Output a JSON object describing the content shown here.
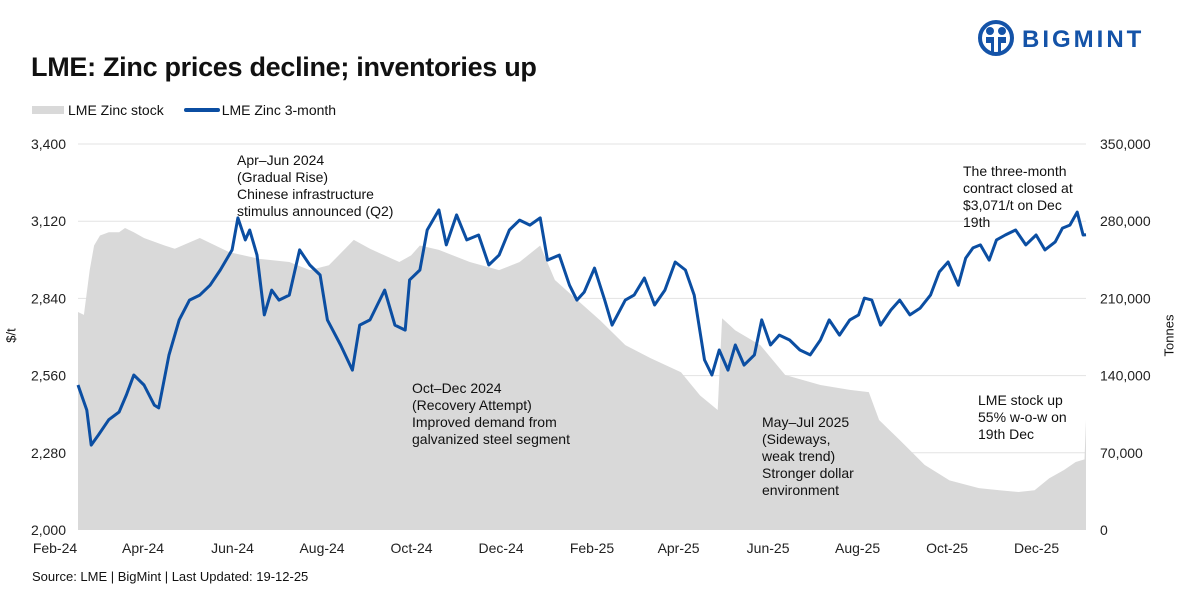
{
  "brand": {
    "name": "BIGMINT",
    "color": "#1453a8"
  },
  "title": "LME: Zinc prices decline; inventories up",
  "source": "Source: LME | BigMint | Last Updated: 19-12-25",
  "annotations": [
    {
      "lines": [
        "Apr–Jun 2024",
        "(Gradual Rise)",
        "Chinese infrastructure",
        "stimulus announced (Q2)"
      ]
    },
    {
      "lines": [
        "Oct–Dec 2024",
        "(Recovery Attempt)",
        "Improved demand from",
        "galvanized steel segment"
      ]
    },
    {
      "lines": [
        "May–Jul 2025",
        "(Sideways,",
        "weak trend)",
        "Stronger dollar",
        "environment"
      ]
    },
    {
      "lines": [
        "The three-month",
        "contract closed at",
        "$3,071/t on Dec",
        "19th"
      ]
    },
    {
      "lines": [
        "LME stock up",
        "55% w-o-w on",
        "19th Dec"
      ]
    }
  ],
  "chart_data": {
    "type": "line+area",
    "title": "LME: Zinc prices decline; inventories up",
    "ylabel": "$/t",
    "y2label": "Tonnes",
    "ylim": [
      2000,
      3400
    ],
    "y2lim": [
      0,
      350000
    ],
    "yticks": [
      "2,000",
      "2,280",
      "2,560",
      "2,840",
      "3,120",
      "3,400"
    ],
    "y2ticks": [
      "0",
      "70,000",
      "140,000",
      "210,000",
      "280,000",
      "350,000"
    ],
    "xticks": [
      {
        "label": "Feb-24",
        "date": "2024-02-01"
      },
      {
        "label": "Apr-24",
        "date": "2024-04-01"
      },
      {
        "label": "Jun-24",
        "date": "2024-06-01"
      },
      {
        "label": "Aug-24",
        "date": "2024-08-01"
      },
      {
        "label": "Oct-24",
        "date": "2024-10-01"
      },
      {
        "label": "Dec-24",
        "date": "2024-12-01"
      },
      {
        "label": "Feb-25",
        "date": "2025-02-01"
      },
      {
        "label": "Apr-25",
        "date": "2025-04-01"
      },
      {
        "label": "Jun-25",
        "date": "2025-06-01"
      },
      {
        "label": "Aug-25",
        "date": "2025-08-01"
      },
      {
        "label": "Oct-25",
        "date": "2025-10-01"
      },
      {
        "label": "Dec-25",
        "date": "2025-12-01"
      }
    ],
    "grid": true,
    "legend_position": "top-left",
    "series": [
      {
        "name": "LME Zinc stock",
        "type": "area",
        "axis": "right",
        "color": "#d9d9d9",
        "points": [
          [
            "2024-02-01",
            197700
          ],
          [
            "2024-02-05",
            195000
          ],
          [
            "2024-02-09",
            235700
          ],
          [
            "2024-02-12",
            258000
          ],
          [
            "2024-02-16",
            267000
          ],
          [
            "2024-02-22",
            270000
          ],
          [
            "2024-02-29",
            270000
          ],
          [
            "2024-03-04",
            273800
          ],
          [
            "2024-03-10",
            270000
          ],
          [
            "2024-03-17",
            264800
          ],
          [
            "2024-03-31",
            258000
          ],
          [
            "2024-04-07",
            255000
          ],
          [
            "2024-04-24",
            264800
          ],
          [
            "2024-05-14",
            252000
          ],
          [
            "2024-06-03",
            246000
          ],
          [
            "2024-06-24",
            243000
          ],
          [
            "2024-07-08",
            235700
          ],
          [
            "2024-07-21",
            240000
          ],
          [
            "2024-08-07",
            263000
          ],
          [
            "2024-08-18",
            255000
          ],
          [
            "2024-09-07",
            243000
          ],
          [
            "2024-09-15",
            249000
          ],
          [
            "2024-09-21",
            258000
          ],
          [
            "2024-10-04",
            254000
          ],
          [
            "2024-10-25",
            243000
          ],
          [
            "2024-11-14",
            235700
          ],
          [
            "2024-11-28",
            243000
          ],
          [
            "2024-12-12",
            258000
          ],
          [
            "2024-12-22",
            226700
          ],
          [
            "2025-01-05",
            210000
          ],
          [
            "2025-01-22",
            190000
          ],
          [
            "2025-02-08",
            167700
          ],
          [
            "2025-02-25",
            156000
          ],
          [
            "2025-03-18",
            143000
          ],
          [
            "2025-03-31",
            122000
          ],
          [
            "2025-04-12",
            108800
          ],
          [
            "2025-04-15",
            192000
          ],
          [
            "2025-04-24",
            181000
          ],
          [
            "2025-05-11",
            167700
          ],
          [
            "2025-05-28",
            140500
          ],
          [
            "2025-06-21",
            131500
          ],
          [
            "2025-07-11",
            127000
          ],
          [
            "2025-07-24",
            125000
          ],
          [
            "2025-07-31",
            99700
          ],
          [
            "2025-08-14",
            81600
          ],
          [
            "2025-08-31",
            59000
          ],
          [
            "2025-09-17",
            45000
          ],
          [
            "2025-10-07",
            38000
          ],
          [
            "2025-10-21",
            36000
          ],
          [
            "2025-11-03",
            34500
          ],
          [
            "2025-11-14",
            36000
          ],
          [
            "2025-11-24",
            47000
          ],
          [
            "2025-12-04",
            54400
          ],
          [
            "2025-12-12",
            61700
          ],
          [
            "2025-12-18",
            64000
          ],
          [
            "2025-12-19",
            99700
          ]
        ]
      },
      {
        "name": "LME Zinc 3-month",
        "type": "line",
        "axis": "left",
        "color": "#0b4ea2",
        "points": [
          [
            "2024-02-01",
            2526
          ],
          [
            "2024-02-07",
            2435
          ],
          [
            "2024-02-10",
            2308
          ],
          [
            "2024-02-15",
            2345
          ],
          [
            "2024-02-22",
            2400
          ],
          [
            "2024-02-29",
            2428
          ],
          [
            "2024-03-05",
            2490
          ],
          [
            "2024-03-10",
            2562
          ],
          [
            "2024-03-17",
            2526
          ],
          [
            "2024-03-24",
            2453
          ],
          [
            "2024-03-27",
            2443
          ],
          [
            "2024-04-03",
            2635
          ],
          [
            "2024-04-10",
            2762
          ],
          [
            "2024-04-17",
            2834
          ],
          [
            "2024-04-24",
            2852
          ],
          [
            "2024-05-01",
            2888
          ],
          [
            "2024-05-08",
            2943
          ],
          [
            "2024-05-16",
            3016
          ],
          [
            "2024-05-20",
            3132
          ],
          [
            "2024-05-25",
            3052
          ],
          [
            "2024-05-28",
            3088
          ],
          [
            "2024-06-02",
            2997
          ],
          [
            "2024-06-07",
            2780
          ],
          [
            "2024-06-12",
            2870
          ],
          [
            "2024-06-17",
            2834
          ],
          [
            "2024-06-24",
            2852
          ],
          [
            "2024-07-01",
            3016
          ],
          [
            "2024-07-08",
            2961
          ],
          [
            "2024-07-15",
            2925
          ],
          [
            "2024-07-20",
            2762
          ],
          [
            "2024-07-29",
            2671
          ],
          [
            "2024-08-06",
            2580
          ],
          [
            "2024-08-11",
            2743
          ],
          [
            "2024-08-18",
            2762
          ],
          [
            "2024-08-23",
            2816
          ],
          [
            "2024-08-28",
            2870
          ],
          [
            "2024-09-04",
            2743
          ],
          [
            "2024-09-11",
            2725
          ],
          [
            "2024-09-14",
            2907
          ],
          [
            "2024-09-21",
            2943
          ],
          [
            "2024-09-26",
            3088
          ],
          [
            "2024-10-04",
            3161
          ],
          [
            "2024-10-09",
            3034
          ],
          [
            "2024-10-16",
            3143
          ],
          [
            "2024-10-23",
            3052
          ],
          [
            "2024-10-31",
            3070
          ],
          [
            "2024-11-07",
            2961
          ],
          [
            "2024-11-14",
            2997
          ],
          [
            "2024-11-21",
            3088
          ],
          [
            "2024-11-28",
            3124
          ],
          [
            "2024-12-05",
            3106
          ],
          [
            "2024-12-12",
            3132
          ],
          [
            "2024-12-17",
            2979
          ],
          [
            "2024-12-25",
            2997
          ],
          [
            "2025-01-01",
            2888
          ],
          [
            "2025-01-06",
            2834
          ],
          [
            "2025-01-11",
            2863
          ],
          [
            "2025-01-18",
            2950
          ],
          [
            "2025-01-25",
            2834
          ],
          [
            "2025-01-30",
            2743
          ],
          [
            "2025-02-08",
            2834
          ],
          [
            "2025-02-14",
            2852
          ],
          [
            "2025-02-21",
            2914
          ],
          [
            "2025-02-28",
            2816
          ],
          [
            "2025-03-07",
            2870
          ],
          [
            "2025-03-14",
            2972
          ],
          [
            "2025-03-21",
            2943
          ],
          [
            "2025-03-27",
            2852
          ],
          [
            "2025-04-03",
            2617
          ],
          [
            "2025-04-08",
            2562
          ],
          [
            "2025-04-13",
            2653
          ],
          [
            "2025-04-19",
            2580
          ],
          [
            "2025-04-24",
            2671
          ],
          [
            "2025-04-30",
            2598
          ],
          [
            "2025-05-07",
            2635
          ],
          [
            "2025-05-12",
            2762
          ],
          [
            "2025-05-18",
            2671
          ],
          [
            "2025-05-24",
            2707
          ],
          [
            "2025-05-31",
            2689
          ],
          [
            "2025-06-07",
            2653
          ],
          [
            "2025-06-14",
            2635
          ],
          [
            "2025-06-21",
            2689
          ],
          [
            "2025-06-27",
            2762
          ],
          [
            "2025-07-04",
            2707
          ],
          [
            "2025-07-11",
            2762
          ],
          [
            "2025-07-17",
            2780
          ],
          [
            "2025-07-21",
            2841
          ],
          [
            "2025-07-26",
            2834
          ],
          [
            "2025-08-01",
            2743
          ],
          [
            "2025-08-08",
            2798
          ],
          [
            "2025-08-14",
            2834
          ],
          [
            "2025-08-21",
            2780
          ],
          [
            "2025-08-28",
            2805
          ],
          [
            "2025-09-04",
            2852
          ],
          [
            "2025-09-10",
            2936
          ],
          [
            "2025-09-16",
            2972
          ],
          [
            "2025-09-23",
            2888
          ],
          [
            "2025-09-28",
            2986
          ],
          [
            "2025-10-03",
            3023
          ],
          [
            "2025-10-08",
            3034
          ],
          [
            "2025-10-14",
            2979
          ],
          [
            "2025-10-19",
            3052
          ],
          [
            "2025-10-25",
            3070
          ],
          [
            "2025-11-01",
            3088
          ],
          [
            "2025-11-08",
            3034
          ],
          [
            "2025-11-15",
            3070
          ],
          [
            "2025-11-21",
            3016
          ],
          [
            "2025-11-28",
            3045
          ],
          [
            "2025-12-03",
            3095
          ],
          [
            "2025-12-08",
            3106
          ],
          [
            "2025-12-13",
            3153
          ],
          [
            "2025-12-17",
            3070
          ],
          [
            "2025-12-19",
            3071
          ]
        ]
      }
    ]
  }
}
